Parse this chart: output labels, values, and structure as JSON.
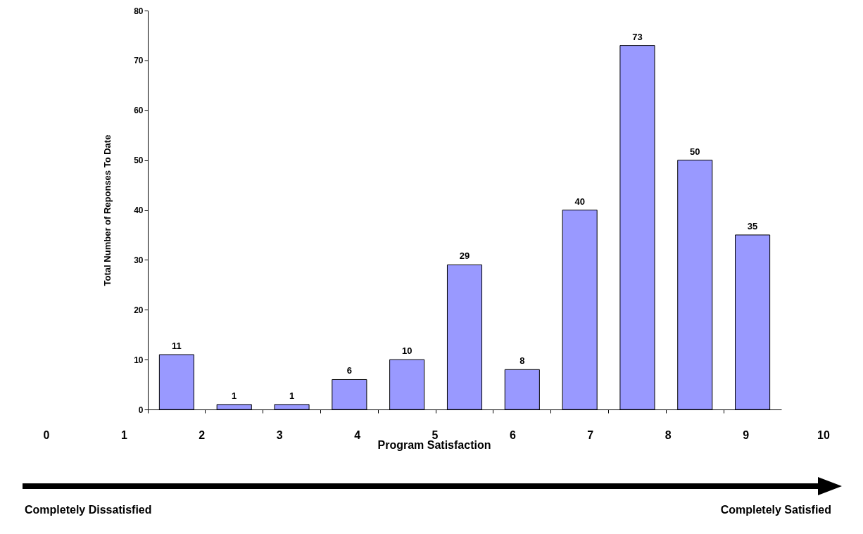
{
  "chart_data": {
    "type": "bar",
    "ylabel": "Total Number of Reponses To Date",
    "xlabel": "Program Satisfaction",
    "categories": [
      null,
      null,
      null,
      null,
      null,
      null,
      null,
      null,
      null,
      null,
      null
    ],
    "values": [
      11,
      1,
      1,
      6,
      10,
      29,
      8,
      40,
      73,
      50,
      35
    ],
    "color": "#9999ff",
    "ylim": [
      0,
      80
    ],
    "yticks": [
      0,
      10,
      20,
      30,
      40,
      50,
      60,
      70,
      80
    ],
    "grid": false,
    "tick_labels": "y",
    "data_labels": true,
    "annotations": [
      "0",
      "1",
      "2",
      "3",
      "4",
      "5",
      "6",
      "7",
      "8",
      "9",
      "10",
      "Completely Dissatisfied",
      "Completely Satisfied"
    ]
  }
}
